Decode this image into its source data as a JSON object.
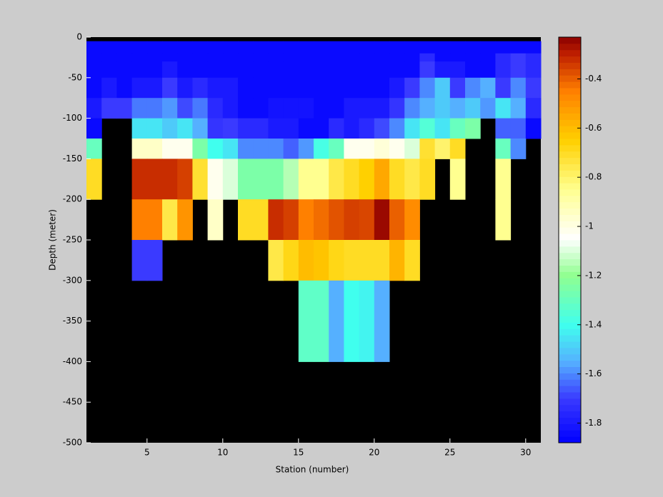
{
  "chart_data": {
    "type": "heatmap",
    "xlabel": "Station (number)",
    "ylabel": "Depth (meter)",
    "x": [
      1,
      2,
      3,
      4,
      5,
      6,
      7,
      8,
      9,
      10,
      11,
      12,
      13,
      14,
      15,
      16,
      17,
      18,
      19,
      20,
      21,
      22,
      23,
      24,
      25,
      26,
      27,
      28,
      29,
      30,
      31
    ],
    "y": [
      0,
      -5,
      -20,
      -30,
      -50,
      -75,
      -100,
      -125,
      -150,
      -200,
      -250,
      -300,
      -400,
      -500
    ],
    "xlim": [
      1,
      31
    ],
    "ylim": [
      -500,
      0
    ],
    "xticks": [
      5,
      10,
      15,
      20,
      25,
      30
    ],
    "yticks": [
      0,
      -50,
      -100,
      -150,
      -200,
      -250,
      -300,
      -350,
      -400,
      -450,
      -500
    ],
    "clim": [
      -1.88,
      -0.23
    ],
    "cticks": [
      -1.8,
      -1.6,
      -1.4,
      -1.2,
      -1,
      -0.8,
      -0.6,
      -0.4
    ],
    "nan_color": "#000000",
    "colorscale": [
      [
        -1.88,
        "#0000ff"
      ],
      [
        -1.7,
        "#3a3aff"
      ],
      [
        -1.55,
        "#55b0ff"
      ],
      [
        -1.4,
        "#40ffee"
      ],
      [
        -1.2,
        "#90ff90"
      ],
      [
        -1.05,
        "#ffffff"
      ],
      [
        -0.85,
        "#ffff90"
      ],
      [
        -0.65,
        "#ffd000"
      ],
      [
        -0.45,
        "#ff8000"
      ],
      [
        -0.3,
        "#c02000"
      ],
      [
        -0.23,
        "#8b0000"
      ]
    ],
    "values": [
      [
        null,
        null,
        null,
        null,
        null,
        null,
        null,
        null,
        null,
        null,
        null,
        null,
        null,
        null,
        null,
        null,
        null,
        null,
        null,
        null,
        null,
        null,
        null,
        null,
        null,
        null,
        null,
        null,
        null,
        null
      ],
      [
        -1.85,
        -1.85,
        -1.85,
        -1.85,
        -1.85,
        -1.85,
        -1.85,
        -1.85,
        -1.85,
        -1.85,
        -1.85,
        -1.85,
        -1.85,
        -1.85,
        -1.85,
        -1.85,
        -1.85,
        -1.85,
        -1.85,
        -1.85,
        -1.85,
        -1.85,
        -1.85,
        -1.85,
        -1.85,
        -1.85,
        -1.85,
        -1.85,
        -1.85,
        -1.85
      ],
      [
        -1.85,
        -1.85,
        -1.85,
        -1.85,
        -1.85,
        -1.85,
        -1.85,
        -1.85,
        -1.85,
        -1.85,
        -1.85,
        -1.85,
        -1.85,
        -1.85,
        -1.85,
        -1.85,
        -1.85,
        -1.85,
        -1.85,
        -1.85,
        -1.85,
        -1.85,
        -1.75,
        -1.85,
        -1.85,
        -1.85,
        -1.85,
        -1.75,
        -1.7,
        -1.75
      ],
      [
        -1.85,
        -1.85,
        -1.85,
        -1.85,
        -1.85,
        -1.8,
        -1.85,
        -1.85,
        -1.85,
        -1.85,
        -1.85,
        -1.85,
        -1.85,
        -1.85,
        -1.85,
        -1.85,
        -1.85,
        -1.85,
        -1.85,
        -1.85,
        -1.85,
        -1.85,
        -1.7,
        -1.8,
        -1.8,
        -1.85,
        -1.85,
        -1.75,
        -1.7,
        -1.75
      ],
      [
        -1.85,
        -1.8,
        -1.85,
        -1.8,
        -1.8,
        -1.7,
        -1.8,
        -1.75,
        -1.8,
        -1.8,
        -1.85,
        -1.85,
        -1.85,
        -1.85,
        -1.85,
        -1.85,
        -1.85,
        -1.85,
        -1.85,
        -1.85,
        -1.8,
        -1.7,
        -1.6,
        -1.5,
        -1.7,
        -1.6,
        -1.55,
        -1.7,
        -1.6,
        -1.7
      ],
      [
        -1.8,
        -1.7,
        -1.7,
        -1.62,
        -1.62,
        -1.58,
        -1.68,
        -1.62,
        -1.75,
        -1.8,
        -1.85,
        -1.85,
        -1.82,
        -1.82,
        -1.82,
        -1.85,
        -1.85,
        -1.8,
        -1.8,
        -1.8,
        -1.72,
        -1.6,
        -1.55,
        -1.5,
        -1.55,
        -1.5,
        -1.58,
        -1.45,
        -1.55,
        -1.75
      ],
      [
        -1.85,
        null,
        null,
        -1.45,
        -1.45,
        -1.5,
        -1.45,
        -1.55,
        -1.72,
        -1.7,
        -1.75,
        -1.75,
        -1.8,
        -1.8,
        -1.85,
        -1.85,
        -1.75,
        -1.8,
        -1.75,
        -1.68,
        -1.6,
        -1.45,
        -1.35,
        -1.45,
        -1.3,
        -1.25,
        null,
        -1.65,
        -1.65,
        -1.85
      ],
      [
        -1.3,
        null,
        null,
        -0.95,
        -0.95,
        -1.02,
        -1.02,
        -1.25,
        -1.4,
        -1.45,
        -1.6,
        -1.6,
        -1.6,
        -1.65,
        -1.58,
        -1.38,
        -1.3,
        -1.02,
        -1.02,
        -0.98,
        -1.02,
        -1.1,
        -0.72,
        -0.8,
        -0.7,
        null,
        null,
        -1.3,
        -1.6,
        null
      ],
      [
        -0.7,
        null,
        null,
        -0.32,
        -0.32,
        -0.32,
        -0.35,
        -0.72,
        -1.02,
        -1.1,
        -1.25,
        -1.25,
        -1.25,
        -1.15,
        -0.85,
        -0.85,
        -0.75,
        -0.7,
        -0.65,
        -0.55,
        -0.7,
        -0.75,
        -0.7,
        null,
        -0.85,
        null,
        null,
        -0.85,
        null,
        null
      ],
      [
        null,
        null,
        null,
        -0.45,
        -0.45,
        -0.75,
        -0.5,
        null,
        -0.95,
        null,
        -0.7,
        -0.7,
        -0.32,
        -0.35,
        -0.45,
        -0.42,
        -0.38,
        -0.35,
        -0.36,
        -0.25,
        -0.4,
        -0.48,
        null,
        null,
        null,
        null,
        null,
        -0.85,
        null,
        null
      ],
      [
        null,
        null,
        null,
        -1.7,
        -1.7,
        null,
        null,
        null,
        null,
        null,
        null,
        null,
        -0.75,
        -0.68,
        -0.6,
        -0.62,
        -0.68,
        -0.7,
        -0.7,
        -0.7,
        -0.58,
        -0.7,
        null,
        null,
        null,
        null,
        null,
        null,
        null,
        null
      ],
      [
        null,
        null,
        null,
        null,
        null,
        null,
        null,
        null,
        null,
        null,
        null,
        null,
        null,
        null,
        -1.32,
        -1.32,
        -1.55,
        -1.4,
        -1.42,
        -1.55,
        null,
        null,
        null,
        null,
        null,
        null,
        null,
        null,
        null,
        null
      ],
      [
        null,
        null,
        null,
        null,
        null,
        null,
        null,
        null,
        null,
        null,
        null,
        null,
        null,
        null,
        null,
        null,
        null,
        null,
        null,
        null,
        null,
        null,
        null,
        null,
        null,
        null,
        null,
        null,
        null,
        null
      ]
    ]
  }
}
